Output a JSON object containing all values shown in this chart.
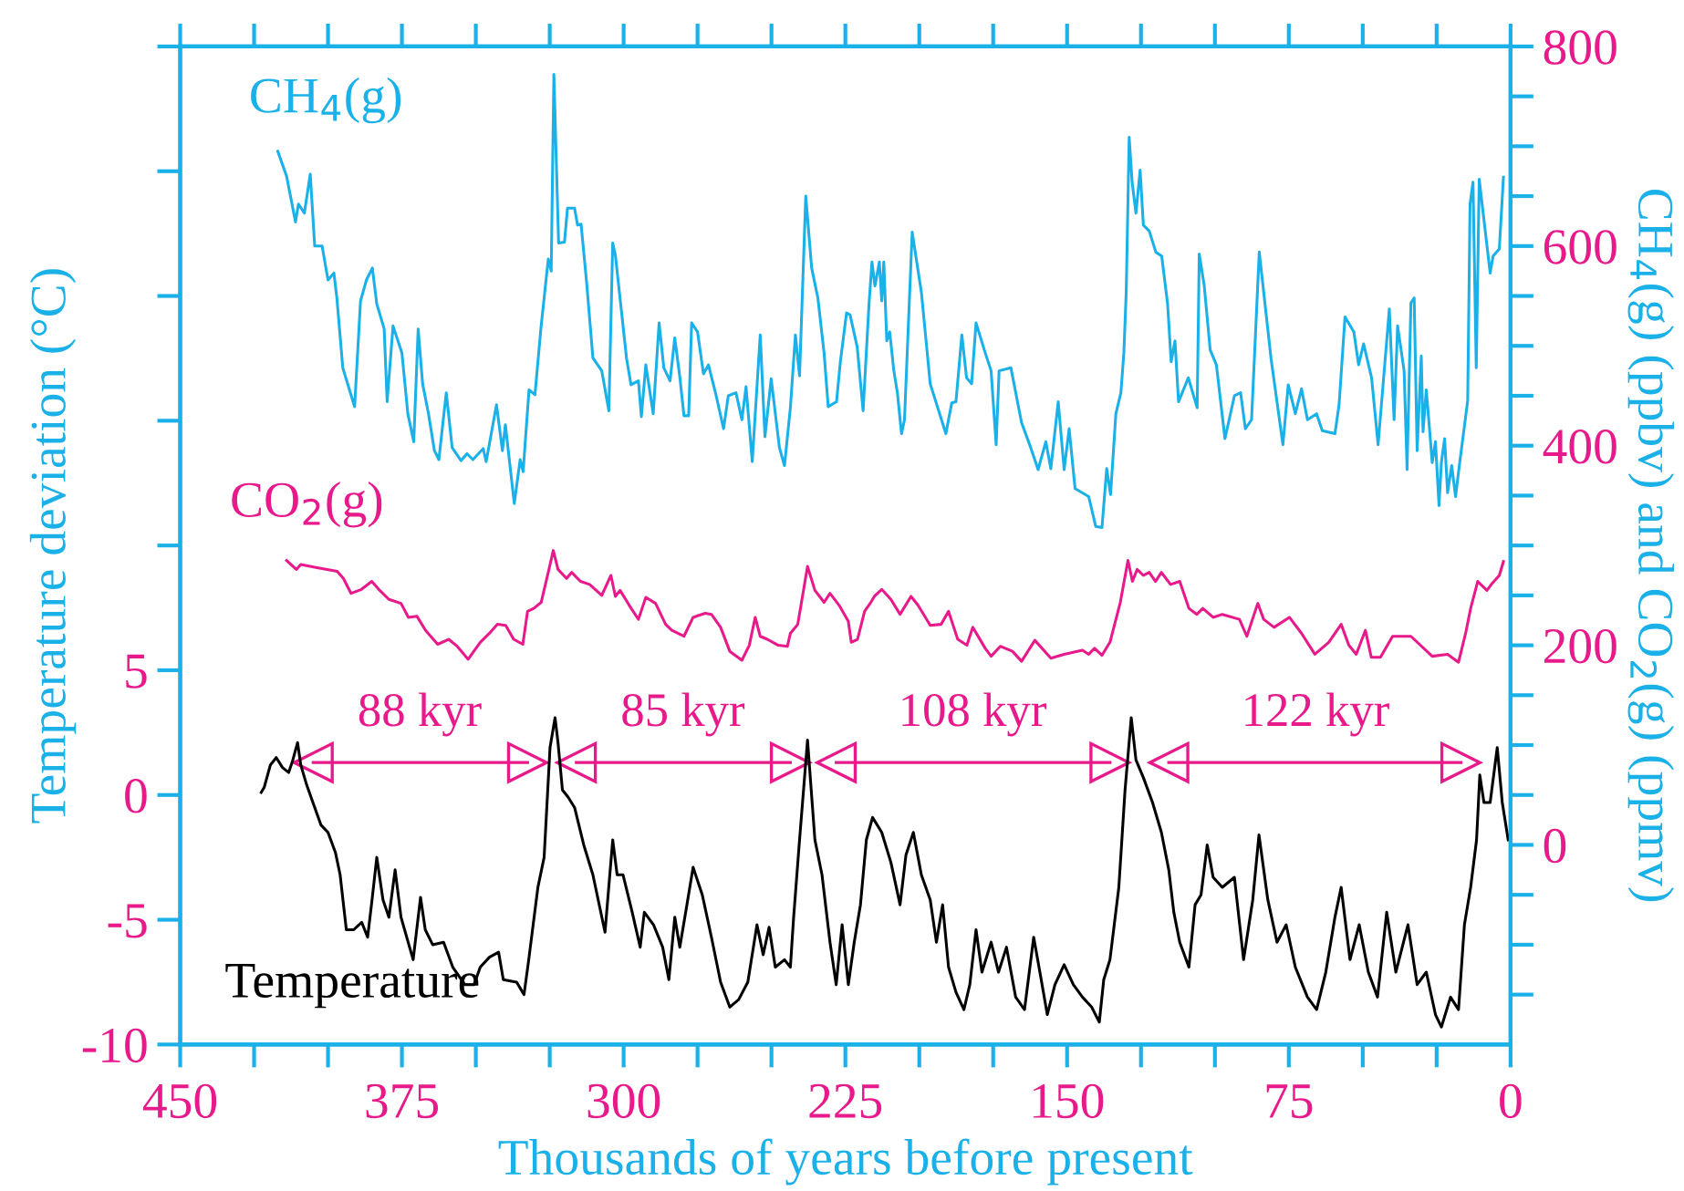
{
  "chart_data": {
    "type": "line",
    "xlabel": "Thousands of years before present",
    "ylabel": "Temperature deviation (°C)",
    "y2label": "CH$_{4}$(g) (ppbv) and CO$_{2}$(g) (ppmv)",
    "xlim": [
      450,
      0
    ],
    "xticks": [
      450,
      {
        "value": 425,
        "label": null
      },
      {
        "value": 400,
        "label": null
      },
      375,
      {
        "value": 350,
        "label": null
      },
      {
        "value": 325,
        "label": null
      },
      300,
      {
        "value": 275,
        "label": null
      },
      {
        "value": 250,
        "label": null
      },
      225,
      {
        "value": 200,
        "label": null
      },
      {
        "value": 175,
        "label": null
      },
      150,
      {
        "value": 125,
        "label": null
      },
      {
        "value": 100,
        "label": null
      },
      75,
      {
        "value": 50,
        "label": null
      },
      {
        "value": 25,
        "label": null
      },
      0
    ],
    "ylim": [
      -10,
      30
    ],
    "yticks": [
      -10,
      -5,
      0,
      5,
      {
        "value": 10,
        "label": null
      },
      {
        "value": 15,
        "label": null
      },
      {
        "value": 20,
        "label": null
      },
      {
        "value": 25,
        "label": null
      },
      {
        "value": 30,
        "label": null
      }
    ],
    "y2lim": [
      -200,
      800
    ],
    "y2ticks": [
      {
        "value": -150,
        "label": null
      },
      {
        "value": -100,
        "label": null
      },
      {
        "value": -50,
        "label": null
      },
      0,
      {
        "value": 50,
        "label": null
      },
      {
        "value": 100,
        "label": null
      },
      {
        "value": 150,
        "label": null
      },
      200,
      {
        "value": 250,
        "label": null
      },
      {
        "value": 300,
        "label": null
      },
      {
        "value": 350,
        "label": null
      },
      400,
      {
        "value": 450,
        "label": null
      },
      {
        "value": 500,
        "label": null
      },
      {
        "value": 550,
        "label": null
      },
      600,
      {
        "value": 650,
        "label": null
      },
      {
        "value": 700,
        "label": null
      },
      {
        "value": 750,
        "label": null
      },
      800
    ],
    "grid": false,
    "annotations": [
      {
        "text": "88 kyr",
        "x": 369,
        "y": 1.3
      },
      {
        "text": "85 kyr",
        "x": 280,
        "y": 1.3
      },
      {
        "text": "108 kyr",
        "x": 182,
        "y": 1.3
      },
      {
        "text": "122 kyr",
        "x": 66,
        "y": 1.3
      }
    ],
    "series": [
      {
        "name": "CH$_{4}$(g)",
        "color": "#1ab0e8",
        "axis": "y2",
        "x": [
          417,
          414,
          411,
          410,
          408,
          406,
          404.5,
          402,
          400,
          398,
          397,
          395,
          391,
          389,
          387,
          385,
          383.5,
          381,
          380,
          378,
          375,
          373,
          371,
          369.5,
          368,
          366,
          364,
          362.5,
          360,
          358,
          355,
          353,
          351,
          347.5,
          346.5,
          343,
          341,
          340,
          337,
          335,
          334,
          332,
          330,
          328,
          325.5,
          324.5,
          323.6,
          322,
          320,
          319,
          316.6,
          315.6,
          314.4,
          312.5,
          310.4,
          307.4,
          305,
          303.7,
          302.8,
          301,
          299,
          297.5,
          295,
          294,
          292.5,
          290,
          288,
          286.4,
          284.3,
          282.7,
          281,
          279.6,
          278,
          277,
          275,
          273,
          271.3,
          268.7,
          266.2,
          264.6,
          262,
          260,
          258.6,
          256.5,
          253.8,
          252.2,
          250.1,
          247.3,
          245.6,
          243.6,
          241.9,
          240.5,
          238.4,
          236.4,
          234.3,
          232.2,
          230.8,
          228,
          226.7,
          224.6,
          223.4,
          221,
          219,
          217,
          216,
          215,
          213.5,
          212.7,
          212,
          211,
          210,
          208.6,
          207.4,
          206,
          205,
          202.4,
          199.3,
          196.3,
          191,
          189,
          187.6,
          185.6,
          184,
          182.3,
          180.8,
          177.7,
          175.7,
          174,
          173,
          169,
          165.4,
          162.3,
          159.8,
          157.2,
          155.5,
          153,
          151,
          149.3,
          147.3,
          142.7,
          140.3,
          138.2,
          136.6,
          135.3,
          133.5,
          131.8,
          130.8,
          130,
          129,
          128,
          126.7,
          125.3,
          124.2,
          122.2,
          120,
          118,
          116,
          114.8,
          113.5,
          112.3,
          109,
          106,
          105.3,
          103.6,
          101.6,
          99.5,
          96.6,
          93.4,
          91.3,
          89.7,
          87.6,
          85,
          81,
          77,
          75.2,
          72.8,
          70.7,
          68.7,
          65.6,
          63.7,
          59.4,
          58,
          56,
          53,
          51.4,
          49.7,
          47,
          44.8,
          41,
          39.4,
          38.2,
          36,
          35,
          33.7,
          32.6,
          31.6,
          30.2,
          29.6,
          28.5,
          27.5,
          26.5,
          25.4,
          24.2,
          23.4,
          22.3,
          21.3,
          19.9,
          18.6,
          17.2,
          14.5,
          13.7,
          12.7,
          11.6,
          10.6,
          6.9,
          5.9,
          3.8,
          2.4
        ],
        "values": [
          695,
          670,
          624,
          642,
          633,
          672,
          600,
          600,
          566,
          573,
          548,
          478,
          439,
          545,
          566,
          578,
          542,
          517,
          444,
          520,
          493,
          432,
          404,
          517,
          462,
          432,
          395,
          386,
          453,
          398,
          385,
          392,
          386,
          397,
          384,
          441,
          395,
          421,
          342,
          386,
          374,
          456,
          451,
          517,
          587,
          575,
          772,
          603,
          604,
          638,
          638,
          621,
          622,
          563,
          488,
          475,
          435,
          603,
          591,
          542,
          487,
          461,
          465,
          429,
          481,
          432,
          523,
          478,
          465,
          508,
          469,
          430,
          430,
          523,
          514,
          472,
          481,
          450,
          417,
          450,
          453,
          426,
          459,
          384,
          511,
          409,
          467,
          398,
          380,
          438,
          511,
          470,
          650,
          578,
          548,
          493,
          439,
          444,
          484,
          533,
          531,
          499,
          435,
          542,
          584,
          560,
          584,
          545,
          584,
          505,
          514,
          475,
          453,
          412,
          426,
          614,
          554,
          462,
          412,
          443,
          444,
          511,
          468,
          462,
          523,
          493,
          475,
          401,
          475,
          478,
          423,
          398,
          376,
          404,
          377,
          444,
          376,
          417,
          357,
          349,
          319,
          318,
          377,
          351,
          432,
          453,
          493,
          554,
          709,
          664,
          633,
          676,
          621,
          615,
          594,
          590,
          542,
          484,
          505,
          444,
          468,
          438,
          592,
          560,
          496,
          481,
          407,
          450,
          453,
          417,
          426,
          594,
          487,
          401,
          461,
          432,
          457,
          426,
          432,
          415,
          412,
          441,
          529,
          514,
          481,
          502,
          468,
          401,
          537,
          426,
          520,
          475,
          376,
          543,
          548,
          395,
          490,
          414,
          456,
          420,
          383,
          404,
          340,
          383,
          407,
          353,
          380,
          349,
          383,
          445,
          642,
          664,
          478,
          667,
          573,
          590,
          597,
          669
        ]
      },
      {
        "name": "CO$_{2}$(g)",
        "color": "#e8198b",
        "axis": "y2",
        "x": [
          414,
          410.7,
          409.2,
          404.1,
          396.9,
          394.8,
          392.2,
          388.7,
          385.2,
          382.5,
          379.4,
          375.3,
          372.8,
          369.9,
          367,
          362.9,
          359.2,
          356.3,
          352.6,
          348.5,
          345.4,
          342.7,
          339.9,
          337.2,
          334.1,
          332.5,
          330.4,
          327.9,
          325.5,
          323.8,
          322.2,
          319.3,
          317.6,
          314.6,
          311.5,
          307.4,
          304.3,
          302.8,
          301.2,
          298.1,
          295,
          292.5,
          289.2,
          285.8,
          283.7,
          279.6,
          276.5,
          272.4,
          270.3,
          267.2,
          264.1,
          260,
          257.5,
          255.5,
          253.8,
          251.4,
          247.7,
          244.6,
          243.6,
          241.1,
          237.8,
          235.3,
          232.2,
          230.2,
          227.1,
          224,
          223,
          220.9,
          218.5,
          216.4,
          215.2,
          212.7,
          209.6,
          206.5,
          202.8,
          200.4,
          196.3,
          192.6,
          190.1,
          187,
          183.9,
          181.9,
          177.7,
          175.7,
          172.6,
          168.5,
          165.4,
          160.9,
          155.5,
          151,
          144.8,
          142.7,
          140.7,
          138.2,
          135.5,
          132,
          129.4,
          127.9,
          126.3,
          124.2,
          122.2,
          120.1,
          118.1,
          115,
          111.9,
          108.8,
          106.1,
          104.1,
          100.6,
          97.5,
          91.7,
          89.2,
          85.5,
          83.5,
          80,
          74.8,
          70.7,
          66.2,
          61.5,
          57.3,
          54.7,
          52.2,
          49.1,
          47.1,
          44,
          39.9,
          33.7,
          26.5,
          21.3,
          17.6,
          15.2,
          13.5,
          11.1,
          8,
          6.5,
          3.8,
          2.4
        ],
        "values": [
          285,
          276,
          281,
          278,
          274,
          267,
          252,
          256,
          264,
          255,
          246,
          242,
          228,
          229,
          215,
          201,
          206,
          199,
          186,
          203,
          212,
          221,
          220,
          206,
          201,
          234,
          237,
          243,
          273,
          295,
          276,
          267,
          273,
          264,
          261,
          250,
          270,
          249,
          255,
          240,
          226,
          248,
          242,
          221,
          215,
          209,
          228,
          232,
          231,
          218,
          194,
          185,
          200,
          228,
          209,
          206,
          200,
          199,
          212,
          221,
          279,
          255,
          243,
          252,
          240,
          224,
          203,
          206,
          234,
          243,
          249,
          256,
          246,
          231,
          249,
          240,
          220,
          221,
          234,
          206,
          200,
          218,
          197,
          189,
          199,
          194,
          184,
          205,
          187,
          191,
          195,
          191,
          197,
          190,
          203,
          243,
          285,
          264,
          276,
          270,
          273,
          264,
          273,
          261,
          264,
          237,
          231,
          237,
          228,
          231,
          226,
          209,
          242,
          226,
          218,
          228,
          212,
          191,
          203,
          221,
          200,
          191,
          215,
          188,
          188,
          209,
          209,
          189,
          191,
          183,
          212,
          237,
          264,
          255,
          261,
          270,
          284
        ]
      },
      {
        "name": "Temperature",
        "color": "#000000",
        "x": [
          422.6,
          421.6,
          419.5,
          417.5,
          415.4,
          413.3,
          411.9,
          410.3,
          409.2,
          407.2,
          405.1,
          402.4,
          400,
          397.5,
          395.9,
          393.8,
          391.3,
          388.6,
          386.6,
          385.1,
          383.5,
          381.4,
          379.4,
          377.3,
          375.3,
          371.2,
          368.7,
          367.1,
          364.6,
          360.9,
          357.8,
          353.7,
          350.6,
          348.5,
          345.4,
          342.3,
          340.7,
          336.2,
          333.7,
          332.1,
          329,
          326.9,
          324.9,
          323.2,
          322.2,
          320.7,
          318.7,
          316.6,
          313.5,
          310.4,
          306.3,
          303.7,
          302.2,
          300.2,
          297.1,
          294.4,
          293,
          289.9,
          286.8,
          284.7,
          282.7,
          281,
          278.6,
          276.5,
          273.4,
          270.3,
          267.2,
          264.1,
          261.1,
          258,
          254.9,
          252.8,
          250.8,
          248.7,
          245.6,
          243.6,
          242.5,
          240.5,
          237.8,
          235.3,
          232.9,
          230.2,
          228.1,
          226.1,
          224,
          222,
          219.9,
          217.9,
          215.8,
          212.7,
          209.6,
          206.5,
          204.5,
          202,
          199.3,
          196.3,
          194.2,
          192.1,
          190.1,
          187.6,
          184.9,
          182.9,
          180.8,
          178.8,
          175.7,
          173.2,
          170.5,
          167.4,
          164.4,
          161.3,
          159.2,
          156.7,
          154.1,
          151,
          147.9,
          144.8,
          141.7,
          139.1,
          137.6,
          135.5,
          132.5,
          130.4,
          128.3,
          126.7,
          124.2,
          121.1,
          118.1,
          115.6,
          113.9,
          111.9,
          108.8,
          106.7,
          104.7,
          102.6,
          100.6,
          97.5,
          93.4,
          90.3,
          87.2,
          85.1,
          82.1,
          79,
          75.9,
          72.8,
          68.7,
          65.6,
          62.5,
          59.4,
          57.3,
          54.3,
          51.2,
          48.1,
          45,
          41.9,
          38.8,
          34.7,
          31.6,
          28.5,
          25.4,
          23.4,
          20.3,
          17.6,
          15.6,
          13.5,
          11.5,
          10.4,
          9,
          6.9,
          4.5,
          2.8,
          0.8
        ],
        "values": [
          0.1,
          0.3,
          1.2,
          1.5,
          1.1,
          0.9,
          1.4,
          2.1,
          1.2,
          0.4,
          -0.3,
          -1.2,
          -1.5,
          -2.3,
          -3.2,
          -5.4,
          -5.4,
          -5.1,
          -5.7,
          -4.2,
          -2.5,
          -4.2,
          -4.9,
          -3.0,
          -4.9,
          -6.6,
          -4.1,
          -5.4,
          -6.0,
          -5.9,
          -6.9,
          -7.6,
          -7.6,
          -6.9,
          -6.5,
          -6.3,
          -7.4,
          -7.5,
          -8.0,
          -6.6,
          -3.7,
          -2.5,
          1.9,
          3.1,
          2.1,
          0.2,
          -0.1,
          -0.5,
          -2.0,
          -3.2,
          -5.5,
          -1.8,
          -3.2,
          -3.2,
          -4.7,
          -6.1,
          -4.7,
          -5.2,
          -6.1,
          -7.4,
          -4.9,
          -6.1,
          -4.4,
          -2.9,
          -4.0,
          -5.7,
          -7.5,
          -8.5,
          -8.2,
          -7.5,
          -5.2,
          -6.4,
          -5.3,
          -6.9,
          -6.6,
          -6.9,
          -4.9,
          -1.8,
          2.2,
          -1.8,
          -3.2,
          -5.9,
          -7.6,
          -5.2,
          -7.6,
          -5.9,
          -4.4,
          -1.8,
          -0.9,
          -1.5,
          -2.7,
          -4.4,
          -2.4,
          -1.5,
          -3.2,
          -4.2,
          -5.9,
          -4.4,
          -6.9,
          -7.9,
          -8.6,
          -7.6,
          -5.4,
          -7.1,
          -5.9,
          -7.1,
          -6.1,
          -8.1,
          -8.6,
          -5.7,
          -7.1,
          -8.8,
          -7.6,
          -6.8,
          -7.6,
          -8.1,
          -8.5,
          -9.1,
          -7.4,
          -6.6,
          -3.7,
          0.2,
          3.1,
          1.4,
          0.7,
          -0.3,
          -1.5,
          -3.0,
          -4.7,
          -5.9,
          -6.9,
          -4.4,
          -4.0,
          -2.0,
          -3.3,
          -3.7,
          -3.3,
          -6.6,
          -4.2,
          -1.6,
          -4.2,
          -5.9,
          -5.2,
          -6.9,
          -8.1,
          -8.6,
          -7.1,
          -4.9,
          -3.7,
          -6.6,
          -5.2,
          -7.1,
          -8.1,
          -4.7,
          -7.1,
          -5.2,
          -7.6,
          -7.1,
          -8.8,
          -9.3,
          -8.1,
          -8.6,
          -5.2,
          -3.7,
          -1.8,
          0.8,
          -0.3,
          -0.3,
          1.9,
          -0.3,
          -1.8
        ]
      },
      {
        "color": "#e8198b",
        "marker": "triangle",
        "x": [
          405,
          332.5
        ],
        "values": [
          1.3,
          1.3
        ]
      },
      {
        "color": "#e8198b",
        "marker": "triangle",
        "x": [
          316,
          243.6
        ],
        "values": [
          1.3,
          1.3
        ]
      },
      {
        "color": "#e8198b",
        "marker": "triangle",
        "x": [
          228.1,
          135.5
        ],
        "values": [
          1.3,
          1.3
        ]
      },
      {
        "color": "#e8198b",
        "marker": "triangle",
        "x": [
          115.6,
          16.8
        ],
        "values": [
          1.3,
          1.3
        ]
      }
    ]
  }
}
